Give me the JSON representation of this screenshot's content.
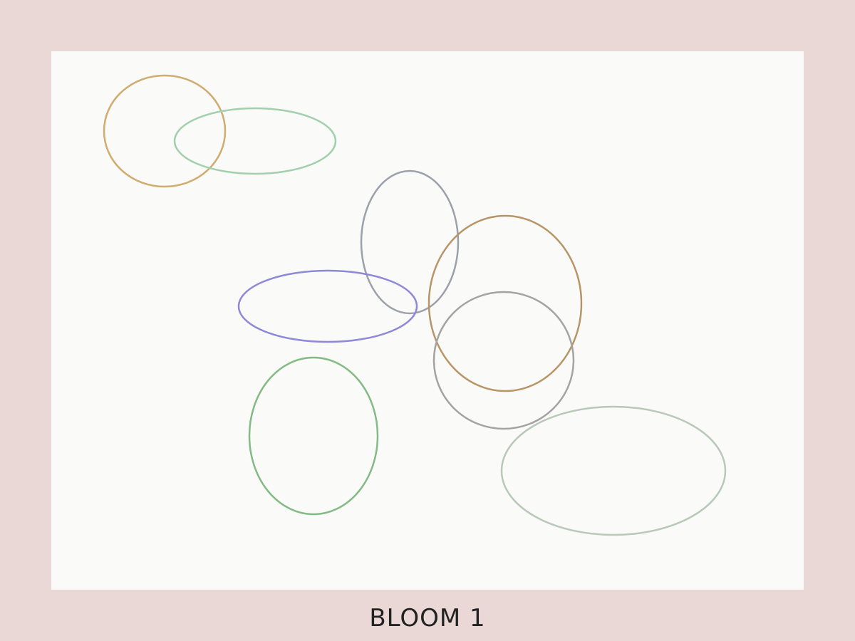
{
  "caption": "BLOOM 1",
  "palette": {
    "background": "#e9d8d6",
    "canvas": "#fafaf8",
    "caption_text": "#222222"
  },
  "shapes": [
    {
      "name": "ochre-ellipse",
      "color": "#cfac70",
      "opacity": 1.0
    },
    {
      "name": "mint-ellipse",
      "color": "#a2cfae",
      "opacity": 1.0
    },
    {
      "name": "slate-ellipse",
      "color": "#9ba0aa",
      "opacity": 1.0
    },
    {
      "name": "tan-ellipse",
      "color": "#b89568",
      "opacity": 1.0
    },
    {
      "name": "violet-ellipse",
      "color": "#8d88d8",
      "opacity": 1.0
    },
    {
      "name": "gray-ellipse",
      "color": "#a3a3a3",
      "opacity": 1.0
    },
    {
      "name": "green-ellipse",
      "color": "#84ba85",
      "opacity": 1.0
    },
    {
      "name": "sage-ellipse",
      "color": "#b9c8b9",
      "opacity": 1.0
    }
  ]
}
